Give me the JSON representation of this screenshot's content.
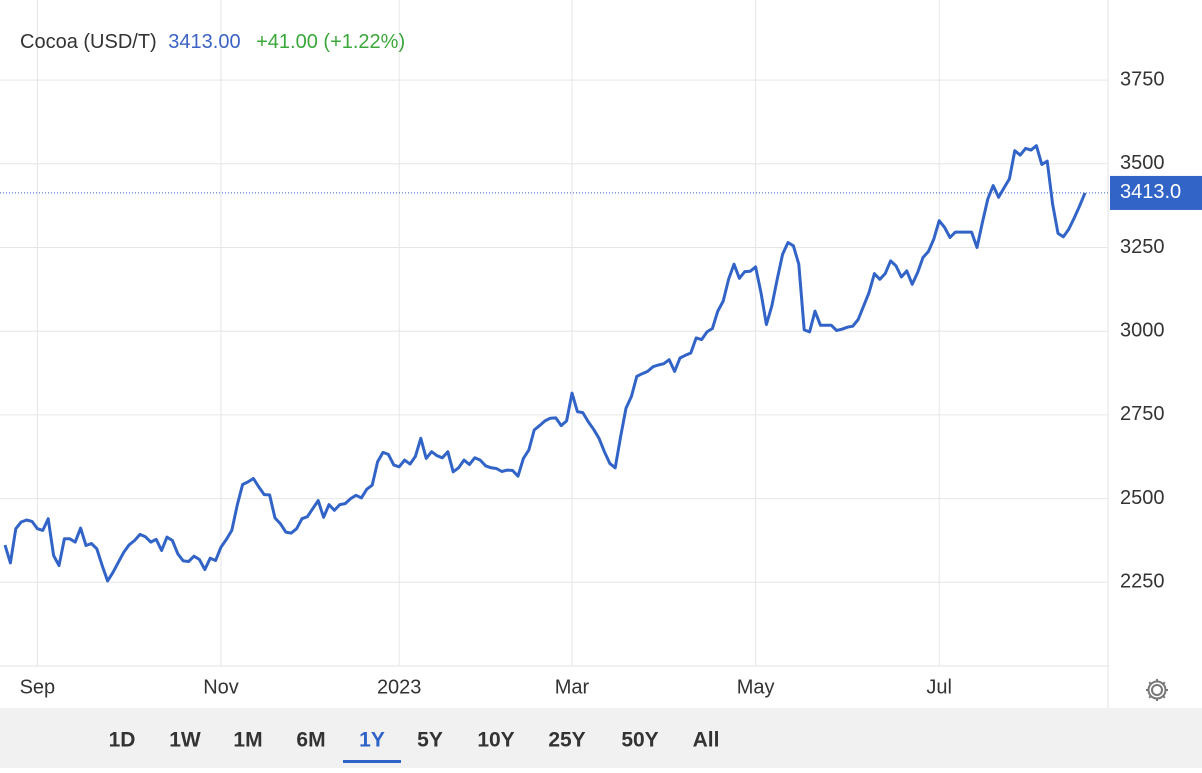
{
  "chart_data": {
    "type": "line",
    "title": "Cocoa (USD/T)",
    "price": "3413.00",
    "change": "+41.00 (+1.22%)",
    "color": "#3264c8",
    "grid": true,
    "ylim": [
      2000,
      4000
    ],
    "yticks": [
      2250,
      2500,
      2750,
      3000,
      3250,
      3500,
      3750
    ],
    "last_label": {
      "value": 3413,
      "label": "3413.0"
    },
    "categories": [
      null,
      null,
      null,
      null,
      null,
      null,
      "Sep",
      null,
      null,
      null,
      null,
      null,
      null,
      null,
      null,
      null,
      null,
      null,
      null,
      null,
      null,
      null,
      null,
      null,
      null,
      null,
      null,
      null,
      null,
      null,
      null,
      null,
      null,
      null,
      null,
      null,
      null,
      null,
      null,
      null,
      "Nov",
      null,
      null,
      null,
      null,
      null,
      null,
      null,
      null,
      null,
      null,
      null,
      null,
      null,
      null,
      null,
      null,
      null,
      null,
      null,
      null,
      null,
      null,
      null,
      null,
      null,
      null,
      null,
      null,
      null,
      null,
      null,
      null,
      "2023",
      null,
      null,
      null,
      null,
      null,
      null,
      null,
      null,
      null,
      null,
      null,
      null,
      null,
      null,
      null,
      null,
      null,
      null,
      null,
      null,
      null,
      null,
      null,
      null,
      null,
      null,
      null,
      null,
      null,
      null,
      null,
      "Mar",
      null,
      null,
      null,
      null,
      null,
      null,
      null,
      null,
      null,
      null,
      null,
      null,
      null,
      null,
      null,
      null,
      null,
      null,
      null,
      null,
      null,
      null,
      null,
      null,
      null,
      null,
      null,
      null,
      null,
      null,
      null,
      null,
      null,
      "May",
      null,
      null,
      null,
      null,
      null,
      null,
      null,
      null,
      null,
      null,
      null,
      null,
      null,
      null,
      null,
      null,
      null,
      null,
      null,
      null,
      null,
      null,
      null,
      null,
      null,
      null,
      null,
      null,
      null,
      null,
      null,
      null,
      null,
      "Jul",
      null,
      null,
      null,
      null,
      null,
      null,
      null,
      null,
      null,
      null,
      null,
      null,
      null,
      null,
      null,
      null,
      null,
      null,
      null,
      null,
      null,
      null,
      null,
      null,
      null,
      null,
      null
    ],
    "values": [
      2361,
      2308,
      2410,
      2430,
      2436,
      2432,
      2410,
      2405,
      2440,
      2330,
      2300,
      2380,
      2380,
      2370,
      2412,
      2360,
      2366,
      2350,
      2300,
      2254,
      2280,
      2310,
      2340,
      2362,
      2375,
      2393,
      2386,
      2370,
      2378,
      2345,
      2385,
      2375,
      2335,
      2314,
      2312,
      2328,
      2318,
      2288,
      2322,
      2315,
      2355,
      2378,
      2405,
      2480,
      2542,
      2550,
      2560,
      2535,
      2512,
      2511,
      2442,
      2425,
      2400,
      2397,
      2410,
      2440,
      2446,
      2470,
      2494,
      2444,
      2482,
      2465,
      2482,
      2485,
      2500,
      2510,
      2502,
      2528,
      2540,
      2610,
      2638,
      2632,
      2600,
      2595,
      2615,
      2603,
      2626,
      2680,
      2620,
      2640,
      2628,
      2622,
      2640,
      2580,
      2592,
      2615,
      2602,
      2622,
      2615,
      2598,
      2592,
      2590,
      2581,
      2585,
      2584,
      2567,
      2620,
      2645,
      2705,
      2718,
      2732,
      2740,
      2741,
      2718,
      2732,
      2815,
      2760,
      2757,
      2730,
      2707,
      2680,
      2640,
      2605,
      2592,
      2685,
      2770,
      2805,
      2865,
      2873,
      2880,
      2894,
      2899,
      2903,
      2915,
      2880,
      2920,
      2928,
      2935,
      2980,
      2975,
      2998,
      3008,
      3060,
      3090,
      3155,
      3200,
      3158,
      3178,
      3179,
      3192,
      3115,
      3020,
      3075,
      3155,
      3230,
      3265,
      3255,
      3200,
      3004,
      2998,
      3060,
      3018,
      3018,
      3018,
      3002,
      3006,
      3012,
      3015,
      3035,
      3075,
      3115,
      3172,
      3155,
      3172,
      3210,
      3195,
      3162,
      3180,
      3140,
      3175,
      3220,
      3238,
      3275,
      3330,
      3310,
      3280,
      3296,
      3296,
      3296,
      3296,
      3250,
      3325,
      3395,
      3435,
      3400,
      3428,
      3455,
      3539,
      3526,
      3546,
      3541,
      3554,
      3498,
      3508,
      3380,
      3292,
      3282,
      3305,
      3338,
      3374,
      3413
    ]
  },
  "controls": {
    "ranges": [
      "1D",
      "1W",
      "1M",
      "6M",
      "1Y",
      "5Y",
      "10Y",
      "25Y",
      "50Y",
      "All"
    ],
    "active": 4
  }
}
